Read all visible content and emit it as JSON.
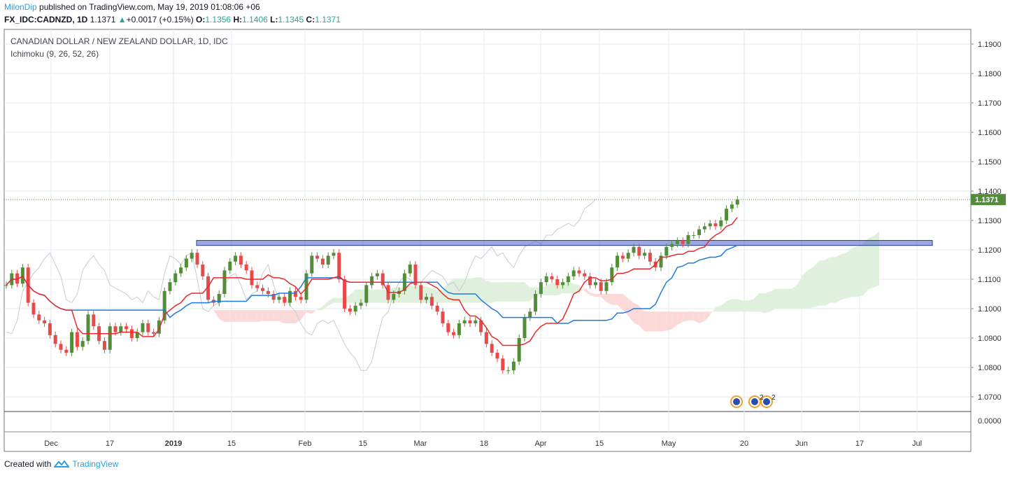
{
  "header": {
    "author": "MilonDip",
    "published": "published on TradingView.com, May 19, 2019 01:08:06 +06",
    "symbol": "FX_IDC:CADNZD, 1D",
    "last": "1.1371",
    "change_arrow": "▲",
    "change": "+0.0017 (+0.15%)",
    "o_label": "O:",
    "o_val": "1.1356",
    "h_label": "H:",
    "h_val": "1.1406",
    "l_label": "L:",
    "l_val": "1.1345",
    "c_label": "C:",
    "c_val": "1.1371"
  },
  "legend": {
    "title": "CANADIAN DOLLAR / NEW ZEALAND DOLLAR, 1D, IDC",
    "indicator": "Ichimoku (9, 26, 52, 26)"
  },
  "footer": {
    "created": "Created with",
    "brand": "TradingView"
  },
  "colors": {
    "up": "#538d3a",
    "down": "#e84a4a",
    "tenkan": "#e8292b",
    "kijun": "#1f7ae0",
    "lagging": "#c8cbd3",
    "cloud_bear": "#fcd9d9",
    "cloud_bull": "#dff0dc",
    "zone": "#4a62c6",
    "grid": "#e6ebf2"
  },
  "chart_data": {
    "type": "candlestick",
    "title": "CANADIAN DOLLAR / NEW ZEALAND DOLLAR, 1D, IDC",
    "ylim": [
      1.065,
      1.195
    ],
    "y_ticks": [
      "1.1900",
      "1.1800",
      "1.1700",
      "1.1600",
      "1.1500",
      "1.1400",
      "1.1300",
      "1.1200",
      "1.1100",
      "1.1000",
      "1.0900",
      "1.0800",
      "1.0700"
    ],
    "indicator_tick": "0.0000",
    "x_ticks": [
      "Dec",
      "17",
      "2019",
      "15",
      "Feb",
      "15",
      "Mar",
      "18",
      "Apr",
      "15",
      "May",
      "20",
      "Jun",
      "17",
      "Jul"
    ],
    "last_price": 1.1371,
    "last_label": "1.1371",
    "resistance_zone": [
      1.1215,
      1.1232
    ],
    "events_icons": 3,
    "event_counts": [
      "2",
      "2"
    ],
    "closes": [
      1.108,
      1.112,
      1.1085,
      1.114,
      1.102,
      1.098,
      1.096,
      1.095,
      1.091,
      1.088,
      1.086,
      1.085,
      1.092,
      1.087,
      1.089,
      1.098,
      1.094,
      1.089,
      1.086,
      1.094,
      1.092,
      1.094,
      1.093,
      1.09,
      1.092,
      1.095,
      1.092,
      1.0915,
      1.096,
      1.106,
      1.109,
      1.112,
      1.114,
      1.117,
      1.119,
      1.115,
      1.111,
      1.103,
      1.102,
      1.105,
      1.113,
      1.116,
      1.118,
      1.115,
      1.113,
      1.108,
      1.107,
      1.106,
      1.105,
      1.103,
      1.104,
      1.102,
      1.106,
      1.104,
      1.103,
      1.112,
      1.118,
      1.117,
      1.115,
      1.118,
      1.119,
      1.11,
      1.1,
      1.099,
      1.101,
      1.102,
      1.108,
      1.111,
      1.112,
      1.108,
      1.103,
      1.105,
      1.106,
      1.112,
      1.115,
      1.108,
      1.103,
      1.104,
      1.101,
      1.099,
      1.095,
      1.092,
      1.091,
      1.095,
      1.096,
      1.095,
      1.096,
      1.092,
      1.088,
      1.085,
      1.083,
      1.079,
      1.079,
      1.082,
      1.09,
      1.097,
      1.099,
      1.105,
      1.109,
      1.111,
      1.11,
      1.108,
      1.109,
      1.111,
      1.113,
      1.112,
      1.111,
      1.108,
      1.109,
      1.106,
      1.109,
      1.114,
      1.118,
      1.117,
      1.119,
      1.121,
      1.118,
      1.119,
      1.116,
      1.114,
      1.118,
      1.121,
      1.122,
      1.123,
      1.122,
      1.125,
      1.125,
      1.127,
      1.128,
      1.129,
      1.128,
      1.13,
      1.134,
      1.1354,
      1.1371
    ]
  }
}
